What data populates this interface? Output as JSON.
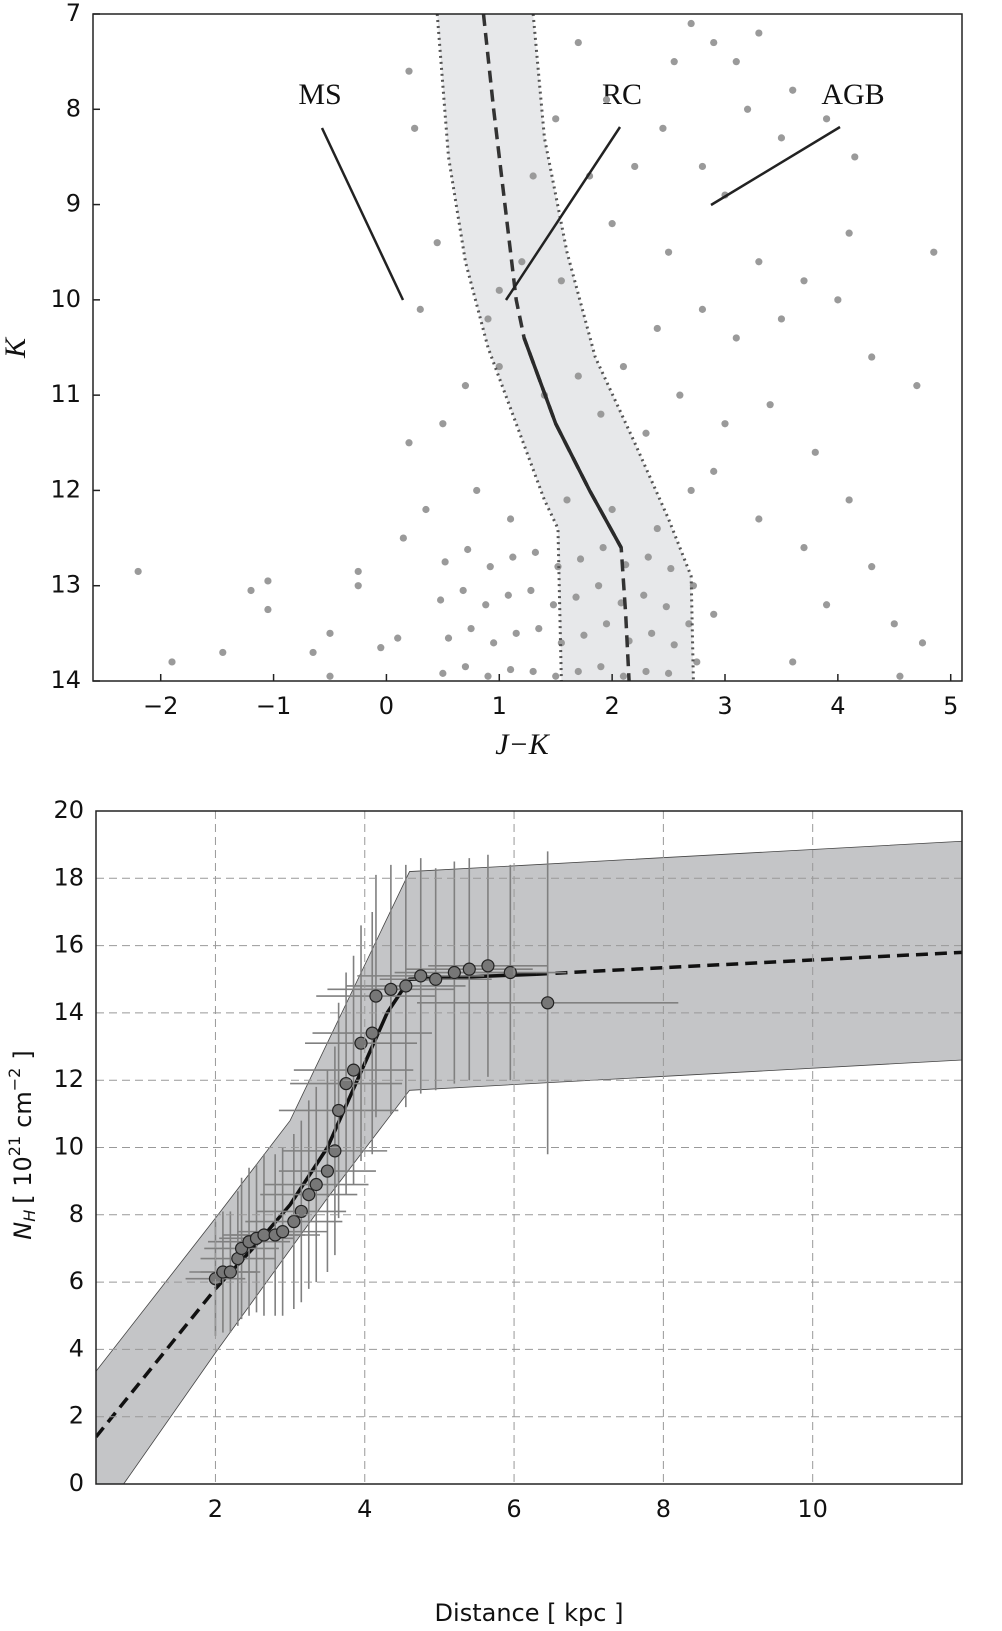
{
  "chart_data": [
    {
      "type": "scatter",
      "xlabel": "J−K",
      "ylabel": "K",
      "annotations": [
        "MS",
        "RC",
        "AGB"
      ],
      "xlim": [
        -2.6,
        5.1
      ],
      "ylim": [
        14,
        7
      ],
      "y_inverted": true,
      "xticks": [
        {
          "value": -2,
          "label": "−2"
        },
        {
          "value": -1,
          "label": "−1"
        },
        0,
        1,
        2,
        3,
        4,
        5
      ],
      "yticks": [
        7,
        8,
        9,
        10,
        11,
        12,
        13,
        14
      ],
      "color": "#9a9a9a",
      "x": [
        -2.2,
        -1.9,
        -1.45,
        -1.2,
        -1.05,
        -1.05,
        -0.5,
        -0.65,
        -0.25,
        -0.25,
        0.1,
        -0.05,
        -0.5,
        2.7,
        2.9,
        2.55,
        3.1,
        3.3,
        3.6,
        3.9,
        4.15,
        3.5,
        3.2,
        2.8,
        3.0,
        2.45,
        2.2,
        2.0,
        1.8,
        2.5,
        3.3,
        3.7,
        4.0,
        4.3,
        4.7,
        4.85,
        4.1,
        3.5,
        3.1,
        2.8,
        2.4,
        2.1,
        1.7,
        2.6,
        3.0,
        3.4,
        3.8,
        4.1,
        4.3,
        3.7,
        3.3,
        2.9,
        2.3,
        1.9,
        1.4,
        1.0,
        0.7,
        0.5,
        0.3,
        0.2,
        0.45,
        0.2,
        0.25,
        1.7,
        1.95,
        1.5,
        1.3,
        1.2,
        1.0,
        0.9,
        1.55,
        0.15,
        0.35,
        4.5,
        4.75,
        4.55,
        3.9,
        3.6,
        0.8,
        1.1,
        1.6,
        2.0,
        2.4,
        2.7,
        0.52,
        0.48,
        0.55,
        0.5,
        0.72,
        0.68,
        0.75,
        0.7,
        0.92,
        0.88,
        0.95,
        0.9,
        1.12,
        1.08,
        1.15,
        1.1,
        1.32,
        1.28,
        1.35,
        1.3,
        1.52,
        1.48,
        1.55,
        1.5,
        1.72,
        1.68,
        1.75,
        1.7,
        1.92,
        1.88,
        1.95,
        1.9,
        2.12,
        2.08,
        2.15,
        2.1,
        2.32,
        2.28,
        2.35,
        2.3,
        2.52,
        2.48,
        2.55,
        2.5,
        2.72,
        2.68,
        2.75,
        2.9
      ],
      "values": [
        12.85,
        13.8,
        13.7,
        13.05,
        12.95,
        13.25,
        13.5,
        13.7,
        12.85,
        13.0,
        13.55,
        13.65,
        13.95,
        7.1,
        7.3,
        7.5,
        7.5,
        7.2,
        7.8,
        8.1,
        8.5,
        8.3,
        8.0,
        8.6,
        8.9,
        8.2,
        8.6,
        9.2,
        8.7,
        9.5,
        9.6,
        9.8,
        10.0,
        10.6,
        10.9,
        9.5,
        9.3,
        10.2,
        10.4,
        10.1,
        10.3,
        10.7,
        10.8,
        11.0,
        11.3,
        11.1,
        11.6,
        12.1,
        12.8,
        12.6,
        12.3,
        11.8,
        11.4,
        11.2,
        11.0,
        10.7,
        10.9,
        11.3,
        10.1,
        11.5,
        9.4,
        7.6,
        8.2,
        7.3,
        7.9,
        8.1,
        8.7,
        9.6,
        9.9,
        10.2,
        9.8,
        12.5,
        12.2,
        13.4,
        13.6,
        13.95,
        13.2,
        13.8,
        12.0,
        12.3,
        12.1,
        12.2,
        12.4,
        12.0,
        12.75,
        13.15,
        13.55,
        13.92,
        12.62,
        13.05,
        13.45,
        13.85,
        12.8,
        13.2,
        13.6,
        13.95,
        12.7,
        13.1,
        13.5,
        13.88,
        12.65,
        13.05,
        13.45,
        13.9,
        12.8,
        13.2,
        13.6,
        13.95,
        12.72,
        13.12,
        13.52,
        13.9,
        12.6,
        13.0,
        13.4,
        13.85,
        12.78,
        13.18,
        13.58,
        13.95,
        12.7,
        13.1,
        13.5,
        13.9,
        12.82,
        13.22,
        13.62,
        13.92,
        13.0,
        13.4,
        13.8,
        13.3
      ],
      "band": {
        "color": "#e7e8ea",
        "x": [
          0.45,
          0.55,
          0.7,
          0.9,
          1.15,
          1.4,
          1.52,
          1.55,
          2.72,
          2.7,
          2.5,
          2.2,
          1.85,
          1.6,
          1.4,
          1.3
        ],
        "y": [
          7,
          8.5,
          9.6,
          10.5,
          11.3,
          12.1,
          12.4,
          14,
          14,
          12.9,
          12.3,
          11.5,
          10.6,
          9.5,
          8.3,
          7
        ]
      },
      "lines": [
        {
          "style": "dashed",
          "color": "#333333",
          "x": [
            0.86,
            0.95,
            1.05,
            1.15,
            1.22,
            1.5,
            1.8,
            2.08,
            2.12,
            2.15
          ],
          "y": [
            7,
            8,
            9,
            10,
            10.4,
            11.3,
            12.0,
            12.6,
            13.3,
            14
          ]
        },
        {
          "style": "dotted",
          "color": "#555555",
          "x": [
            0.45,
            0.55,
            0.7,
            0.9,
            1.15,
            1.4,
            1.52,
            1.55
          ],
          "y": [
            7,
            8.5,
            9.6,
            10.5,
            11.3,
            12.1,
            12.4,
            14
          ]
        },
        {
          "style": "dotted",
          "color": "#555555",
          "x": [
            1.3,
            1.4,
            1.6,
            1.85,
            2.2,
            2.5,
            2.7,
            2.72
          ],
          "y": [
            7,
            8.3,
            9.5,
            10.6,
            11.5,
            12.3,
            12.9,
            14
          ]
        },
        {
          "style": "solid",
          "color": "#2a2a2a",
          "x": [
            1.22,
            1.5,
            1.8,
            2.08
          ],
          "y": [
            10.4,
            11.3,
            12.0,
            12.6
          ]
        }
      ]
    },
    {
      "type": "errorbar",
      "xlabel": "Distance [ kpc ]",
      "ylabel": {
        "symbol": "N",
        "subscript": "H",
        "open": "[ 10",
        "exponent": "21",
        "unit": "cm",
        "unit_exponent": "−2",
        "close": "]"
      },
      "xlim": [
        0.4,
        12
      ],
      "ylim": [
        0,
        20
      ],
      "grid": true,
      "xticks": [
        2,
        4,
        6,
        8,
        10
      ],
      "yticks": [
        0,
        2,
        4,
        6,
        8,
        10,
        12,
        14,
        16,
        18,
        20
      ],
      "color": "#777777",
      "bar_color": "#808080",
      "x": [
        2.0,
        2.1,
        2.2,
        2.3,
        2.35,
        2.45,
        2.55,
        2.65,
        2.8,
        2.9,
        3.05,
        3.15,
        3.25,
        3.35,
        3.5,
        3.6,
        3.65,
        3.75,
        3.85,
        3.95,
        4.1,
        4.15,
        4.35,
        4.55,
        4.75,
        4.95,
        5.2,
        5.4,
        5.65,
        5.95,
        6.45
      ],
      "values": [
        6.1,
        6.3,
        6.3,
        6.7,
        7.0,
        7.2,
        7.3,
        7.4,
        7.4,
        7.5,
        7.8,
        8.1,
        8.6,
        8.9,
        9.3,
        9.9,
        11.1,
        11.9,
        12.3,
        13.1,
        13.4,
        14.5,
        14.7,
        14.8,
        15.1,
        15.0,
        15.2,
        15.3,
        15.4,
        15.2,
        14.3
      ],
      "xerr": [
        0.4,
        0.45,
        0.4,
        0.5,
        0.5,
        0.55,
        0.5,
        0.55,
        0.6,
        0.6,
        0.65,
        0.6,
        0.65,
        0.7,
        0.65,
        0.7,
        0.8,
        0.75,
        0.8,
        0.75,
        0.8,
        0.8,
        0.85,
        0.8,
        0.85,
        0.75,
        0.8,
        0.85,
        0.8,
        0.75,
        1.75
      ],
      "yerr": [
        1.7,
        1.8,
        1.8,
        2.0,
        2.1,
        2.2,
        2.2,
        2.4,
        2.4,
        2.5,
        2.6,
        2.7,
        2.8,
        2.9,
        3.0,
        3.1,
        3.2,
        3.3,
        3.4,
        3.5,
        3.6,
        3.6,
        3.7,
        3.6,
        3.5,
        3.3,
        3.3,
        3.3,
        3.3,
        3.2,
        4.5
      ],
      "band": {
        "color": "#c4c5c7",
        "x": [
          0.4,
          2.0,
          3.0,
          4.6,
          12,
          12,
          4.6,
          3.5,
          2.0,
          0.77,
          0.4
        ],
        "y": [
          3.35,
          7.9,
          10.8,
          18.2,
          19.1,
          12.6,
          11.7,
          8.5,
          3.9,
          0,
          0
        ]
      },
      "lines": [
        {
          "style": "dashed",
          "color": "#111111",
          "x": [
            0.4,
            2.0
          ],
          "y": [
            1.4,
            5.8
          ]
        },
        {
          "style": "solid",
          "color": "#111111",
          "x": [
            2.0,
            2.5,
            3.0,
            3.5,
            4.0,
            4.3,
            4.6,
            6.3
          ],
          "y": [
            5.8,
            7.0,
            8.3,
            10.0,
            12.5,
            14.0,
            15.0,
            15.15
          ]
        },
        {
          "style": "dashed",
          "color": "#111111",
          "x": [
            6.3,
            12
          ],
          "y": [
            15.15,
            15.8
          ]
        }
      ]
    }
  ]
}
